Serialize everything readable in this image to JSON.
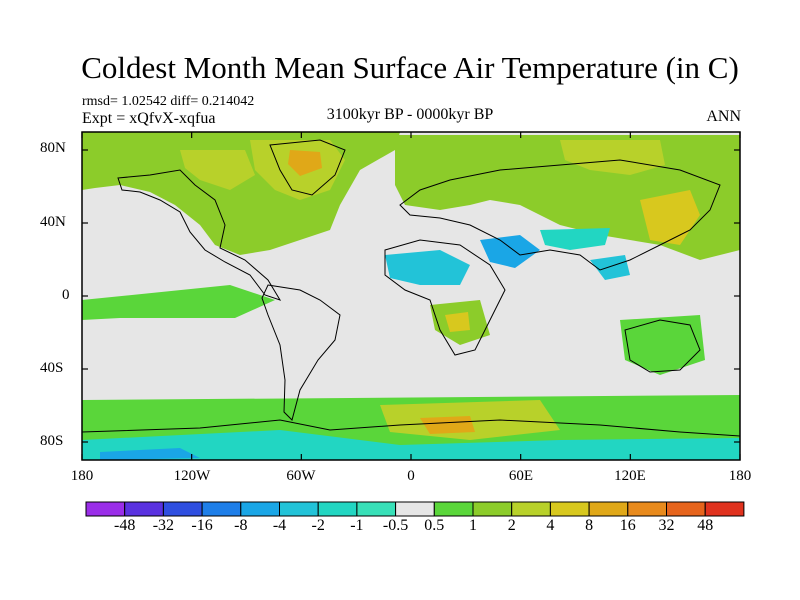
{
  "title": "Coldest Month Mean Surface Air Temperature (in C)",
  "stats": "rmsd= 1.02542 diff= 0.214042",
  "experiment": "Expt = xQfvX-xqfua",
  "period": "3100kyr BP - 0000kyr BP",
  "season": "ANN",
  "lat_labels": [
    "80N",
    "40N",
    "0",
    "40S",
    "80S"
  ],
  "lon_labels": [
    "180",
    "120W",
    "60W",
    "0",
    "60E",
    "120E",
    "180"
  ],
  "colorbar": {
    "colors": [
      "#9a2ee8",
      "#5a32e0",
      "#2f4fe0",
      "#1e7ee8",
      "#1aa6e6",
      "#22c3d8",
      "#22d6c2",
      "#38e0b8",
      "#e6e6e6",
      "#5ad63a",
      "#8ccc2a",
      "#b8d12a",
      "#d8c81e",
      "#e0a818",
      "#e88a1c",
      "#e6641c",
      "#e0321e"
    ],
    "labels": [
      "-48",
      "-32",
      "-16",
      "-8",
      "-4",
      "-2",
      "-1",
      "-0.5",
      "0.5",
      "1",
      "2",
      "4",
      "8",
      "16",
      "32",
      "48"
    ]
  }
}
